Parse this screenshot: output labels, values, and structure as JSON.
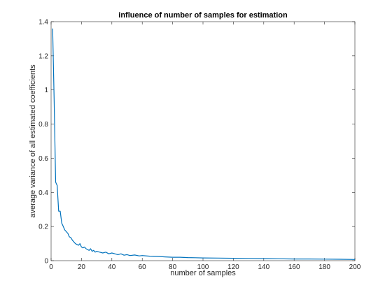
{
  "chart_data": {
    "type": "line",
    "title": "influence of number of samples for estimation",
    "xlabel": "number of samples",
    "ylabel": "average variance of all estimated coefficients",
    "xlim": [
      0,
      200
    ],
    "ylim": [
      0,
      1.4
    ],
    "xticks": [
      0,
      20,
      40,
      60,
      80,
      100,
      120,
      140,
      160,
      180,
      200
    ],
    "yticks": [
      0,
      0.2,
      0.4,
      0.6,
      0.8,
      1,
      1.2,
      1.4
    ],
    "grid": false,
    "series": [
      {
        "color": "#0072BD",
        "x": [
          1,
          2,
          3,
          4,
          5,
          6,
          7,
          8,
          9,
          10,
          11,
          12,
          13,
          14,
          15,
          16,
          17,
          18,
          19,
          20,
          21,
          22,
          23,
          24,
          25,
          26,
          27,
          28,
          29,
          30,
          32,
          34,
          36,
          38,
          40,
          42,
          44,
          46,
          48,
          50,
          52,
          55,
          58,
          60,
          65,
          70,
          75,
          80,
          85,
          90,
          95,
          100,
          110,
          120,
          130,
          140,
          150,
          160,
          170,
          180,
          190,
          200
        ],
        "y": [
          1.36,
          0.95,
          0.46,
          0.44,
          0.29,
          0.29,
          0.22,
          0.2,
          0.18,
          0.17,
          0.16,
          0.14,
          0.135,
          0.12,
          0.11,
          0.1,
          0.095,
          0.09,
          0.1,
          0.08,
          0.075,
          0.08,
          0.07,
          0.065,
          0.06,
          0.07,
          0.055,
          0.06,
          0.05,
          0.055,
          0.05,
          0.045,
          0.05,
          0.04,
          0.045,
          0.04,
          0.035,
          0.04,
          0.032,
          0.035,
          0.03,
          0.033,
          0.028,
          0.03,
          0.026,
          0.025,
          0.022,
          0.02,
          0.02,
          0.018,
          0.017,
          0.016,
          0.015,
          0.014,
          0.013,
          0.012,
          0.011,
          0.01,
          0.01,
          0.009,
          0.008,
          0.007
        ]
      }
    ]
  }
}
